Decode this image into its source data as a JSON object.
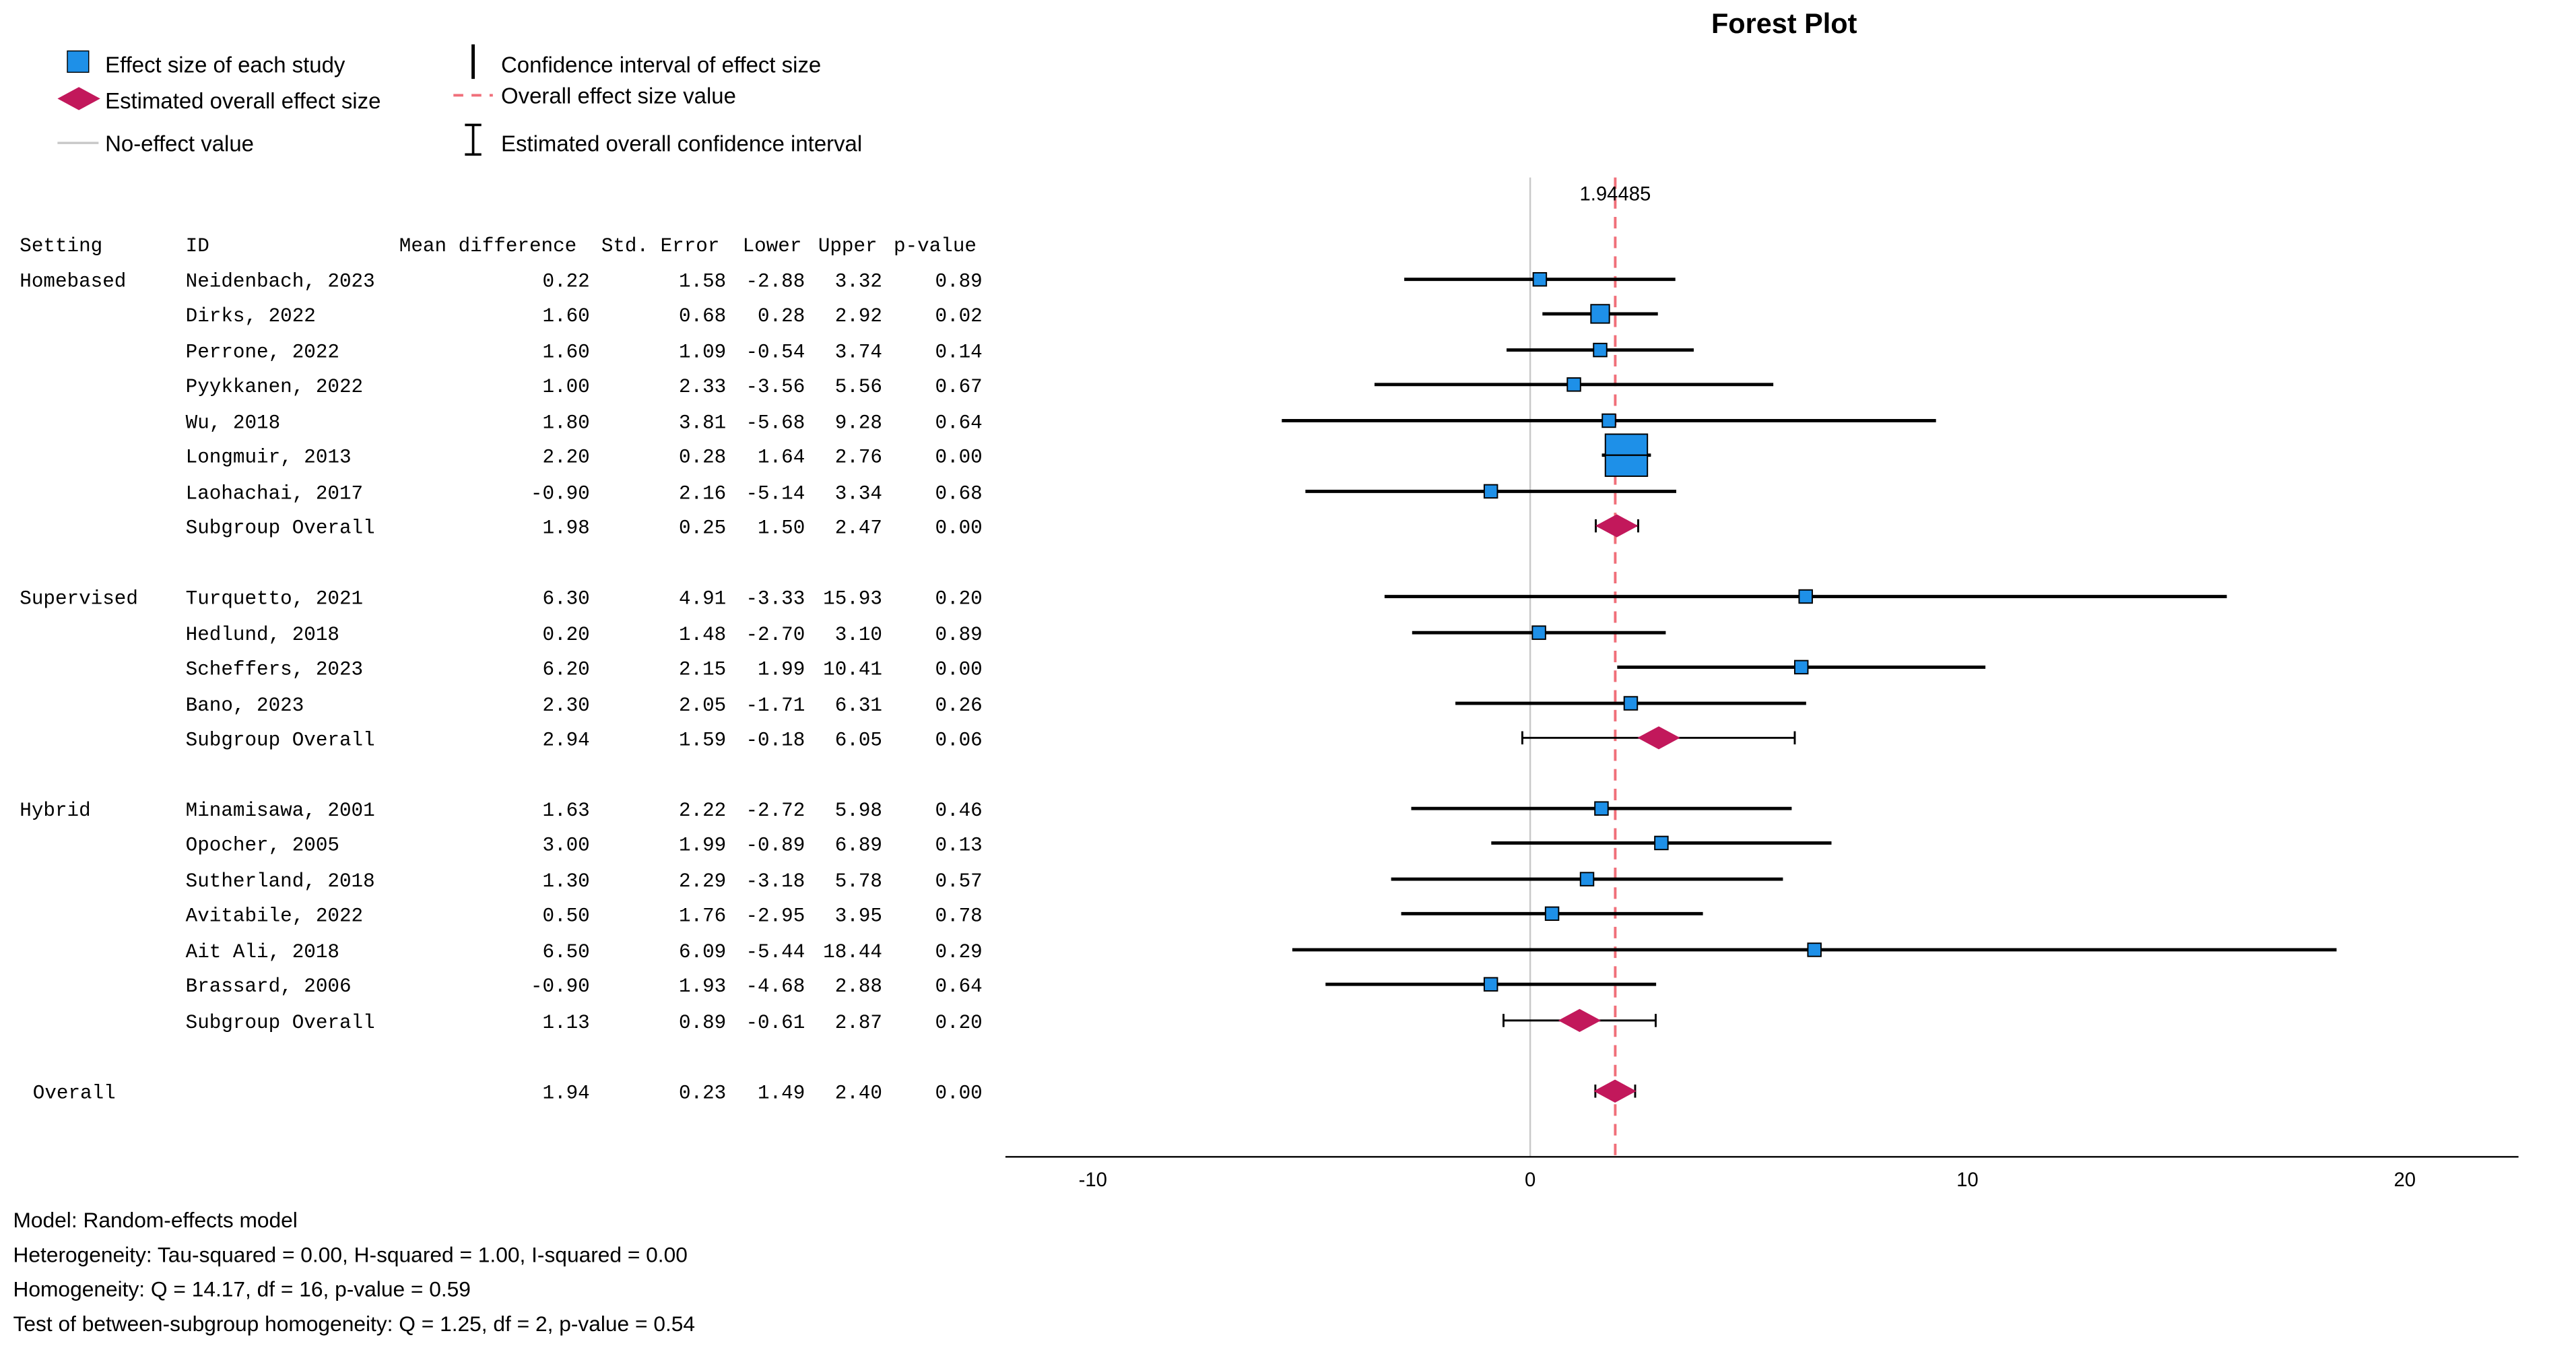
{
  "chart_data": {
    "type": "forest",
    "title": "Forest Plot",
    "legend": [
      {
        "symbol": "square",
        "label": "Effect size of each study"
      },
      {
        "symbol": "ci",
        "label": "Confidence interval of effect size"
      },
      {
        "symbol": "diamond",
        "label": "Estimated overall effect size"
      },
      {
        "symbol": "dashed",
        "label": "Overall effect size value"
      },
      {
        "symbol": "noeffect",
        "label": "No-effect value"
      },
      {
        "symbol": "overallci",
        "label": "Estimated overall confidence interval"
      }
    ],
    "columns": {
      "setting": "Setting",
      "id": "ID",
      "mean": "Mean difference",
      "se": "Std. Error",
      "lower": "Lower",
      "upper": "Upper",
      "p": "p-value"
    },
    "overall_value_label": "1.94485",
    "overall_value": 1.94485,
    "no_effect_value": 0,
    "xlim": [
      -12,
      22.6
    ],
    "xticks": [
      -10,
      0,
      10,
      20
    ],
    "rows": [
      {
        "setting": "Homebased",
        "id": "Neidenbach, 2023",
        "mean": "0.22",
        "se": "1.58",
        "lower": "-2.88",
        "upper": "3.32",
        "p": "0.89",
        "kind": "study",
        "m": 0.22,
        "lo": -2.88,
        "hi": 3.32,
        "w": 1
      },
      {
        "setting": "",
        "id": "Dirks, 2022",
        "mean": "1.60",
        "se": "0.68",
        "lower": "0.28",
        "upper": "2.92",
        "p": "0.02",
        "kind": "study",
        "m": 1.6,
        "lo": 0.28,
        "hi": 2.92,
        "w": 1.4
      },
      {
        "setting": "",
        "id": "Perrone, 2022",
        "mean": "1.60",
        "se": "1.09",
        "lower": "-0.54",
        "upper": "3.74",
        "p": "0.14",
        "kind": "study",
        "m": 1.6,
        "lo": -0.54,
        "hi": 3.74,
        "w": 1
      },
      {
        "setting": "",
        "id": "Pyykkanen, 2022",
        "mean": "1.00",
        "se": "2.33",
        "lower": "-3.56",
        "upper": "5.56",
        "p": "0.67",
        "kind": "study",
        "m": 1.0,
        "lo": -3.56,
        "hi": 5.56,
        "w": 1
      },
      {
        "setting": "",
        "id": "Wu, 2018",
        "mean": "1.80",
        "se": "3.81",
        "lower": "-5.68",
        "upper": "9.28",
        "p": "0.64",
        "kind": "study",
        "m": 1.8,
        "lo": -5.68,
        "hi": 9.28,
        "w": 1
      },
      {
        "setting": "",
        "id": "Longmuir, 2013",
        "mean": "2.20",
        "se": "0.28",
        "lower": "1.64",
        "upper": "2.76",
        "p": "0.00",
        "kind": "study",
        "m": 2.2,
        "lo": 1.64,
        "hi": 2.76,
        "w": 3.2
      },
      {
        "setting": "",
        "id": "Laohachai, 2017",
        "mean": "-0.90",
        "se": "2.16",
        "lower": "-5.14",
        "upper": "3.34",
        "p": "0.68",
        "kind": "study",
        "m": -0.9,
        "lo": -5.14,
        "hi": 3.34,
        "w": 1
      },
      {
        "setting": "",
        "id": "Subgroup Overall",
        "mean": "1.98",
        "se": "0.25",
        "lower": "1.50",
        "upper": "2.47",
        "p": "0.00",
        "kind": "subgroup",
        "m": 1.98,
        "lo": 1.5,
        "hi": 2.47
      },
      {
        "setting": "Supervised",
        "id": "Turquetto, 2021",
        "mean": "6.30",
        "se": "4.91",
        "lower": "-3.33",
        "upper": "15.93",
        "p": "0.20",
        "kind": "study",
        "m": 6.3,
        "lo": -3.33,
        "hi": 15.93,
        "w": 1
      },
      {
        "setting": "",
        "id": "Hedlund, 2018",
        "mean": "0.20",
        "se": "1.48",
        "lower": "-2.70",
        "upper": "3.10",
        "p": "0.89",
        "kind": "study",
        "m": 0.2,
        "lo": -2.7,
        "hi": 3.1,
        "w": 1
      },
      {
        "setting": "",
        "id": "Scheffers, 2023",
        "mean": "6.20",
        "se": "2.15",
        "lower": "1.99",
        "upper": "10.41",
        "p": "0.00",
        "kind": "study",
        "m": 6.2,
        "lo": 1.99,
        "hi": 10.41,
        "w": 1
      },
      {
        "setting": "",
        "id": "Bano, 2023",
        "mean": "2.30",
        "se": "2.05",
        "lower": "-1.71",
        "upper": "6.31",
        "p": "0.26",
        "kind": "study",
        "m": 2.3,
        "lo": -1.71,
        "hi": 6.31,
        "w": 1
      },
      {
        "setting": "",
        "id": "Subgroup Overall",
        "mean": "2.94",
        "se": "1.59",
        "lower": "-0.18",
        "upper": "6.05",
        "p": "0.06",
        "kind": "subgroup",
        "m": 2.94,
        "lo": -0.18,
        "hi": 6.05
      },
      {
        "setting": "Hybrid",
        "id": "Minamisawa, 2001",
        "mean": "1.63",
        "se": "2.22",
        "lower": "-2.72",
        "upper": "5.98",
        "p": "0.46",
        "kind": "study",
        "m": 1.63,
        "lo": -2.72,
        "hi": 5.98,
        "w": 1
      },
      {
        "setting": "",
        "id": "Opocher, 2005",
        "mean": "3.00",
        "se": "1.99",
        "lower": "-0.89",
        "upper": "6.89",
        "p": "0.13",
        "kind": "study",
        "m": 3.0,
        "lo": -0.89,
        "hi": 6.89,
        "w": 1
      },
      {
        "setting": "",
        "id": "Sutherland, 2018",
        "mean": "1.30",
        "se": "2.29",
        "lower": "-3.18",
        "upper": "5.78",
        "p": "0.57",
        "kind": "study",
        "m": 1.3,
        "lo": -3.18,
        "hi": 5.78,
        "w": 1
      },
      {
        "setting": "",
        "id": "Avitabile, 2022",
        "mean": "0.50",
        "se": "1.76",
        "lower": "-2.95",
        "upper": "3.95",
        "p": "0.78",
        "kind": "study",
        "m": 0.5,
        "lo": -2.95,
        "hi": 3.95,
        "w": 1
      },
      {
        "setting": "",
        "id": "Ait Ali, 2018",
        "mean": "6.50",
        "se": "6.09",
        "lower": "-5.44",
        "upper": "18.44",
        "p": "0.29",
        "kind": "study",
        "m": 6.5,
        "lo": -5.44,
        "hi": 18.44,
        "w": 1
      },
      {
        "setting": "",
        "id": "Brassard, 2006",
        "mean": "-0.90",
        "se": "1.93",
        "lower": "-4.68",
        "upper": "2.88",
        "p": "0.64",
        "kind": "study",
        "m": -0.9,
        "lo": -4.68,
        "hi": 2.88,
        "w": 1
      },
      {
        "setting": "",
        "id": "Subgroup Overall",
        "mean": "1.13",
        "se": "0.89",
        "lower": "-0.61",
        "upper": "2.87",
        "p": "0.20",
        "kind": "subgroup",
        "m": 1.13,
        "lo": -0.61,
        "hi": 2.87
      },
      {
        "setting": "",
        "id": "Overall",
        "mean": "1.94",
        "se": "0.23",
        "lower": "1.49",
        "upper": "2.40",
        "p": "0.00",
        "kind": "overall",
        "m": 1.94,
        "lo": 1.49,
        "hi": 2.4
      }
    ],
    "footer": [
      "Model: Random-effects model",
      "Heterogeneity: Tau-squared = 0.00, H-squared = 1.00, I-squared = 0.00",
      "Homogeneity: Q = 14.17, df = 16, p-value = 0.59",
      "Test of between-subgroup homogeneity: Q = 1.25, df = 2, p-value = 0.54"
    ],
    "colors": {
      "study": "#1e90e8",
      "diamond": "#c2185b",
      "dashed": "#f06f7a",
      "noeffect": "#c8c8c8"
    }
  }
}
